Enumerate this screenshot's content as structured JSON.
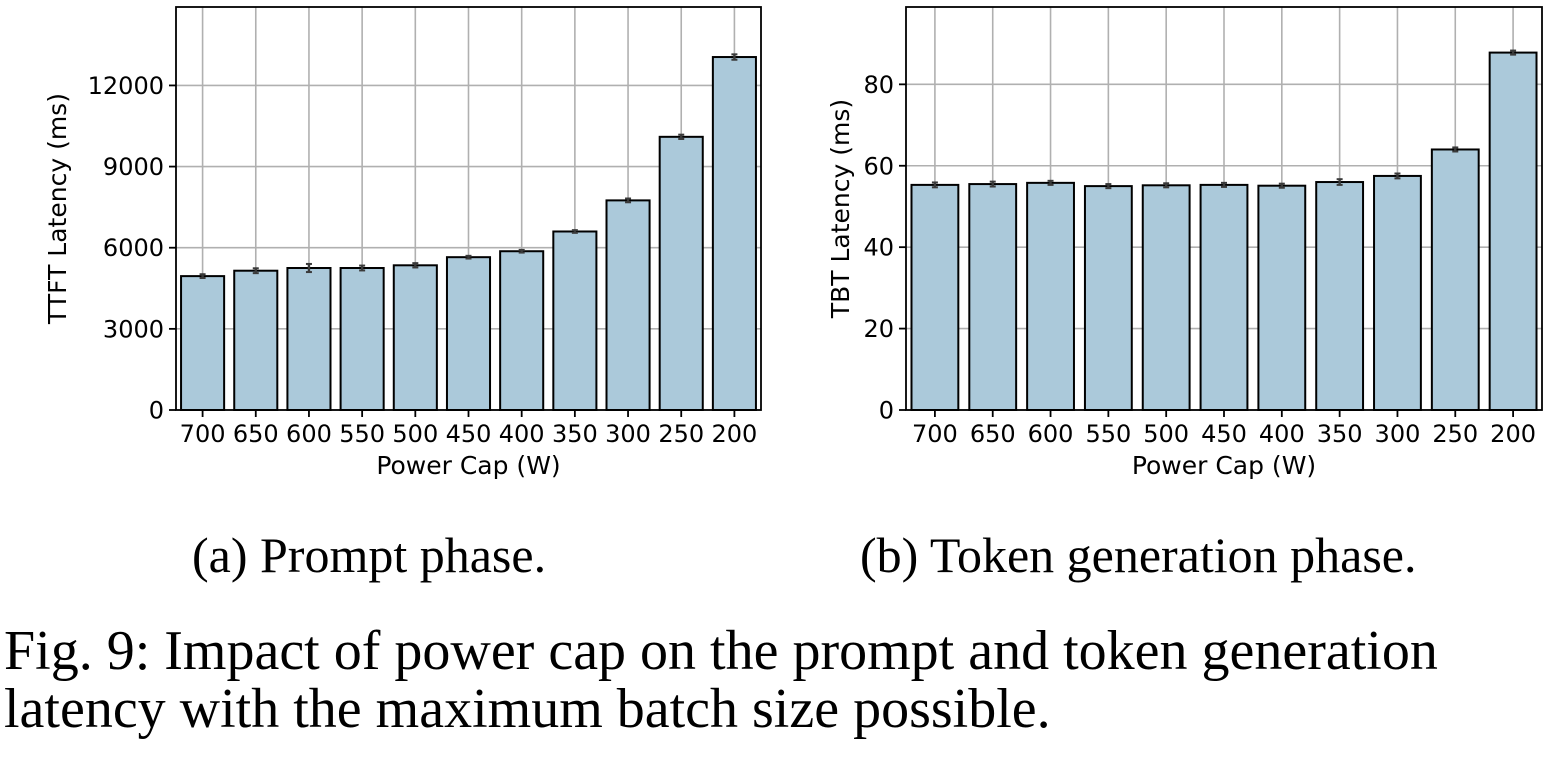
{
  "chart_data": [
    {
      "type": "bar",
      "xlabel": "Power Cap (W)",
      "ylabel": "TTFT Latency (ms)",
      "categories": [
        "700",
        "650",
        "600",
        "550",
        "500",
        "450",
        "400",
        "350",
        "300",
        "250",
        "200"
      ],
      "values": [
        4950,
        5150,
        5250,
        5250,
        5350,
        5650,
        5870,
        6600,
        7750,
        10100,
        13050
      ],
      "errors": [
        70,
        90,
        150,
        90,
        80,
        50,
        50,
        50,
        70,
        80,
        100
      ],
      "yticks": [
        0,
        3000,
        6000,
        9000,
        12000
      ],
      "ylim": [
        0,
        14900
      ],
      "grid": true,
      "bar_color": "#abc9da",
      "subcaption": "(a) Prompt phase."
    },
    {
      "type": "bar",
      "xlabel": "Power Cap (W)",
      "ylabel": "TBT Latency (ms)",
      "categories": [
        "700",
        "650",
        "600",
        "550",
        "500",
        "450",
        "400",
        "350",
        "300",
        "250",
        "200"
      ],
      "values": [
        55.3,
        55.5,
        55.8,
        55.0,
        55.2,
        55.3,
        55.1,
        56.0,
        57.5,
        64.0,
        87.8
      ],
      "errors": [
        0.6,
        0.6,
        0.5,
        0.5,
        0.5,
        0.5,
        0.5,
        0.7,
        0.6,
        0.5,
        0.5
      ],
      "yticks": [
        0,
        20,
        40,
        60,
        80
      ],
      "ylim": [
        0,
        99
      ],
      "grid": true,
      "bar_color": "#abc9da",
      "subcaption": "(b) Token generation phase."
    }
  ],
  "caption": {
    "line1": "Fig. 9: Impact of power cap on the prompt and token generation",
    "line2": "latency with the maximum batch size possible."
  }
}
